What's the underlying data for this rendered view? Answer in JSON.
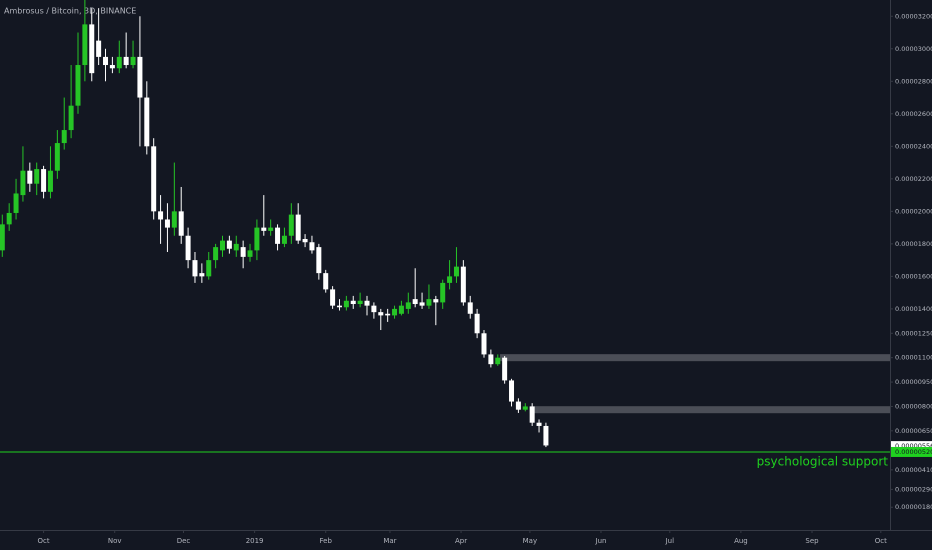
{
  "chart_data": {
    "type": "candlestick",
    "title": "Ambrosus / Bitcoin, 3D, BINANCE",
    "up_color": "#26c526",
    "down_color": "#ffffff",
    "background": "#131722",
    "x": [
      12,
      15,
      18,
      21,
      24,
      27,
      30,
      33,
      36,
      39,
      42,
      45,
      48,
      51,
      54,
      57,
      60,
      63,
      66,
      69,
      72,
      75,
      78,
      81,
      84,
      87,
      90,
      93,
      96,
      99,
      102,
      105,
      108,
      111,
      114,
      117,
      120,
      123,
      126,
      129,
      132,
      135,
      138,
      141,
      144,
      147,
      150,
      153,
      156,
      159,
      162,
      165,
      168,
      171,
      174,
      177,
      180,
      183,
      186,
      189,
      192,
      195,
      198,
      201,
      204,
      207,
      210,
      213,
      216,
      219,
      222,
      225,
      228,
      231,
      234,
      237,
      240,
      243,
      246,
      249
    ],
    "open": [
      1.76e-05,
      1.92e-05,
      1.99e-05,
      2.1e-05,
      2.25e-05,
      2.17e-05,
      2.26e-05,
      2.12e-05,
      2.25e-05,
      2.42e-05,
      2.5e-05,
      2.65e-05,
      2.9e-05,
      3.15e-05,
      3.05e-05,
      2.95e-05,
      2.9e-05,
      2.88e-05,
      2.95e-05,
      2.9e-05,
      2.95e-05,
      2.7e-05,
      2.4e-05,
      2e-05,
      1.95e-05,
      1.9e-05,
      2e-05,
      1.85e-05,
      1.7e-05,
      1.62e-05,
      1.6e-05,
      1.7e-05,
      1.76e-05,
      1.82e-05,
      1.76e-05,
      1.78e-05,
      1.72e-05,
      1.76e-05,
      1.9e-05,
      1.88e-05,
      1.9e-05,
      1.8e-05,
      1.85e-05,
      1.98e-05,
      1.83e-05,
      1.81e-05,
      1.78e-05,
      1.62e-05,
      1.52e-05,
      1.42e-05,
      1.41e-05,
      1.45e-05,
      1.43e-05,
      1.45e-05,
      1.42e-05,
      1.38e-05,
      1.37e-05,
      1.36e-05,
      1.37e-05,
      1.4e-05,
      1.46e-05,
      1.44e-05,
      1.42e-05,
      1.46e-05,
      1.44e-05,
      1.56e-05,
      1.6e-05,
      1.66e-05,
      1.44e-05,
      1.37e-05,
      1.25e-05,
      1.12e-05,
      1.06e-05,
      1.1e-05,
      9.6e-06,
      8.3e-06,
      7.8e-06,
      8e-06,
      7e-06,
      6.8e-06
    ],
    "high": [
      1.98e-05,
      2.05e-05,
      2.2e-05,
      2.4e-05,
      2.3e-05,
      2.3e-05,
      2.28e-05,
      2.4e-05,
      2.5e-05,
      2.7e-05,
      2.9e-05,
      3.1e-05,
      3.3e-05,
      3.25e-05,
      3.25e-05,
      3e-05,
      2.95e-05,
      3.05e-05,
      3.1e-05,
      3.05e-05,
      3.2e-05,
      2.8e-05,
      2.45e-05,
      2.1e-05,
      2.05e-05,
      2.3e-05,
      2.15e-05,
      1.9e-05,
      1.75e-05,
      1.68e-05,
      1.75e-05,
      1.8e-05,
      1.85e-05,
      1.85e-05,
      1.85e-05,
      1.82e-05,
      1.8e-05,
      1.95e-05,
      2.1e-05,
      1.95e-05,
      1.92e-05,
      1.9e-05,
      2.05e-05,
      2.05e-05,
      1.86e-05,
      1.85e-05,
      1.8e-05,
      1.64e-05,
      1.54e-05,
      1.46e-05,
      1.48e-05,
      1.48e-05,
      1.5e-05,
      1.48e-05,
      1.44e-05,
      1.4e-05,
      1.4e-05,
      1.42e-05,
      1.45e-05,
      1.5e-05,
      1.65e-05,
      1.5e-05,
      1.55e-05,
      1.48e-05,
      1.58e-05,
      1.7e-05,
      1.78e-05,
      1.7e-05,
      1.48e-05,
      1.4e-05,
      1.27e-05,
      1.15e-05,
      1.12e-05,
      1.11e-05,
      9.7e-06,
      8.5e-06,
      8.2e-06,
      8.2e-06,
      7.2e-06,
      7e-06
    ],
    "low": [
      1.72e-05,
      1.88e-05,
      1.95e-05,
      2.06e-05,
      2.12e-05,
      2.1e-05,
      2.08e-05,
      2.08e-05,
      2.2e-05,
      2.38e-05,
      2.45e-05,
      2.6e-05,
      2.8e-05,
      2.8e-05,
      2.9e-05,
      2.8e-05,
      2.85e-05,
      2.85e-05,
      2.88e-05,
      2.88e-05,
      2.4e-05,
      2.35e-05,
      1.95e-05,
      1.8e-05,
      1.75e-05,
      1.85e-05,
      1.8e-05,
      1.65e-05,
      1.56e-05,
      1.56e-05,
      1.58e-05,
      1.65e-05,
      1.72e-05,
      1.74e-05,
      1.72e-05,
      1.65e-05,
      1.69e-05,
      1.7e-05,
      1.85e-05,
      1.85e-05,
      1.76e-05,
      1.78e-05,
      1.8e-05,
      1.8e-05,
      1.78e-05,
      1.74e-05,
      1.58e-05,
      1.5e-05,
      1.4e-05,
      1.39e-05,
      1.39e-05,
      1.4e-05,
      1.41e-05,
      1.36e-05,
      1.34e-05,
      1.27e-05,
      1.32e-05,
      1.34e-05,
      1.36e-05,
      1.37e-05,
      1.41e-05,
      1.4e-05,
      1.4e-05,
      1.3e-05,
      1.4e-05,
      1.52e-05,
      1.56e-05,
      1.42e-05,
      1.34e-05,
      1.22e-05,
      1.1e-05,
      1.04e-05,
      1.05e-05,
      9.4e-06,
      8e-06,
      7.6e-06,
      7.7e-06,
      6.8e-06,
      6.4e-06,
      5.5e-06
    ],
    "close": [
      1.92e-05,
      1.99e-05,
      2.11e-05,
      2.25e-05,
      2.17e-05,
      2.26e-05,
      2.12e-05,
      2.25e-05,
      2.42e-05,
      2.5e-05,
      2.65e-05,
      2.9e-05,
      3.15e-05,
      2.85e-05,
      2.95e-05,
      2.9e-05,
      2.88e-05,
      2.95e-05,
      2.9e-05,
      2.95e-05,
      2.7e-05,
      2.4e-05,
      2e-05,
      1.95e-05,
      1.9e-05,
      2e-05,
      1.85e-05,
      1.7e-05,
      1.6e-05,
      1.6e-05,
      1.7e-05,
      1.78e-05,
      1.82e-05,
      1.77e-05,
      1.8e-05,
      1.72e-05,
      1.76e-05,
      1.9e-05,
      1.88e-05,
      1.9e-05,
      1.8e-05,
      1.85e-05,
      1.98e-05,
      1.82e-05,
      1.81e-05,
      1.76e-05,
      1.62e-05,
      1.52e-05,
      1.42e-05,
      1.41e-05,
      1.45e-05,
      1.43e-05,
      1.45e-05,
      1.42e-05,
      1.38e-05,
      1.36e-05,
      1.36e-05,
      1.4e-05,
      1.42e-05,
      1.44e-05,
      1.43e-05,
      1.42e-05,
      1.46e-05,
      1.44e-05,
      1.56e-05,
      1.6e-05,
      1.66e-05,
      1.44e-05,
      1.37e-05,
      1.25e-05,
      1.12e-05,
      1.06e-05,
      1.1e-05,
      9.6e-06,
      8.3e-06,
      7.8e-06,
      8e-06,
      7e-06,
      6.8e-06,
      5.6e-06
    ],
    "xlim": [
      11,
      399
    ],
    "xticks": [
      {
        "value": 30,
        "label": "Oct"
      },
      {
        "value": 61,
        "label": "Nov"
      },
      {
        "value": 91,
        "label": "Dec"
      },
      {
        "value": 122,
        "label": "2019"
      },
      {
        "value": 153,
        "label": "Feb"
      },
      {
        "value": 181,
        "label": "Mar"
      },
      {
        "value": 212,
        "label": "Apr"
      },
      {
        "value": 242,
        "label": "May"
      },
      {
        "value": 273,
        "label": "Jun"
      },
      {
        "value": 303,
        "label": "Jul"
      },
      {
        "value": 334,
        "label": "Aug"
      },
      {
        "value": 365,
        "label": "Sep"
      },
      {
        "value": 395,
        "label": "Oct"
      }
    ],
    "ylim": [
      4e-07,
      3.3e-05
    ],
    "yticks": [
      {
        "value": 3.2e-05,
        "label": "0.00003200"
      },
      {
        "value": 3e-05,
        "label": "0.00003000"
      },
      {
        "value": 2.8e-05,
        "label": "0.00002800"
      },
      {
        "value": 2.6e-05,
        "label": "0.00002600"
      },
      {
        "value": 2.4e-05,
        "label": "0.00002400"
      },
      {
        "value": 2.2e-05,
        "label": "0.00002200"
      },
      {
        "value": 2e-05,
        "label": "0.00002000"
      },
      {
        "value": 1.8e-05,
        "label": "0.00001800"
      },
      {
        "value": 1.6e-05,
        "label": "0.00001600"
      },
      {
        "value": 1.4e-05,
        "label": "0.00001400"
      },
      {
        "value": 1.25e-05,
        "label": "0.00001250"
      },
      {
        "value": 1.1e-05,
        "label": "0.00001100"
      },
      {
        "value": 9.5e-06,
        "label": "0.00000950"
      },
      {
        "value": 8e-06,
        "label": "0.00000800"
      },
      {
        "value": 6.5e-06,
        "label": "0.00000650"
      },
      {
        "value": 4.1e-06,
        "label": "0.00000410"
      },
      {
        "value": 2.9e-06,
        "label": "0.00000290"
      },
      {
        "value": 1.8e-06,
        "label": "0.00000180"
      }
    ],
    "last_price": {
      "value": 5.56e-06,
      "label": "0.00000556"
    },
    "zones": [
      {
        "value": 1.1e-05,
        "start": 229,
        "color": "#4b4e57"
      },
      {
        "value": 7.8e-06,
        "start": 242,
        "color": "#4b4e57"
      }
    ],
    "support": {
      "value": 5.2e-06,
      "label": "0.00000520",
      "text": "psychological support",
      "color": "#1fd11f"
    }
  }
}
